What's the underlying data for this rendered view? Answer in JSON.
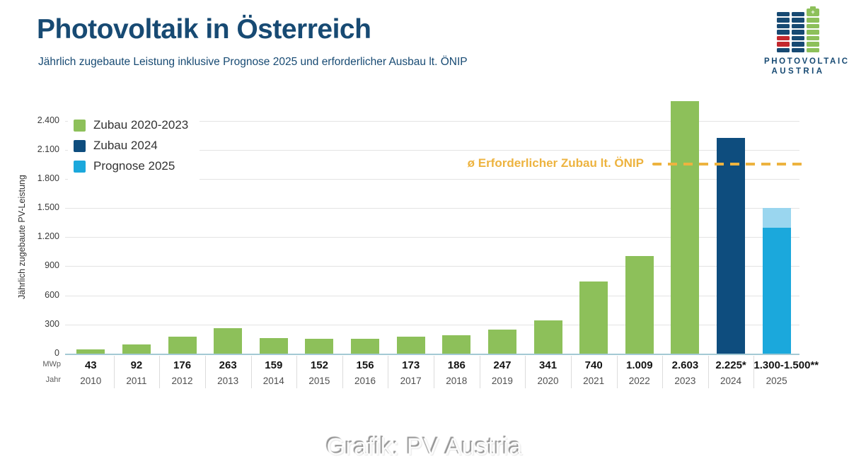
{
  "header": {
    "title": "Photovoltaik in Österreich",
    "subtitle": "Jährlich zugebaute Leistung inklusive Prognose 2025 und erforderlicher Ausbau lt. ÖNIP"
  },
  "logo": {
    "line1": "PHOTOVOLTAIC",
    "line2": "AUSTRIA",
    "columns": [
      [
        "navy",
        "navy",
        "navy",
        "navy",
        "red",
        "red",
        "navy"
      ],
      [
        "navy",
        "navy",
        "navy",
        "navy",
        "navy",
        "navy",
        "navy"
      ],
      [
        "cap",
        "green",
        "green",
        "green",
        "green",
        "green",
        "green"
      ]
    ],
    "cap_icon": "+"
  },
  "colors": {
    "navy_text": "#174a73",
    "green": "#8dc05a",
    "darkblue": "#0e4d7e",
    "lightblue": "#1ba8dc",
    "lightblue_cap": "#9ad6ef",
    "orange": "#edb33f",
    "red": "#c3282e",
    "grid": "#e3e3e3",
    "baseline": "#a3c9d4"
  },
  "chart_data": {
    "type": "bar",
    "title": "Photovoltaik in Österreich",
    "subtitle": "Jährlich zugebaute Leistung inklusive Prognose 2025 und erforderlicher Ausbau lt. ÖNIP",
    "ylabel": "Jährlich zugebaute PV-Leistung",
    "unit": "MWp",
    "grid": true,
    "ylim": [
      0,
      2700
    ],
    "yticks": [
      0,
      300,
      600,
      900,
      1200,
      1500,
      1800,
      2100,
      2400
    ],
    "ytick_labels": [
      "0",
      "300",
      "600",
      "900",
      "1.200",
      "1.500",
      "1.800",
      "2.100",
      "2.400"
    ],
    "categories": [
      "2010",
      "2011",
      "2012",
      "2013",
      "2014",
      "2015",
      "2016",
      "2017",
      "2018",
      "2019",
      "2020",
      "2021",
      "2022",
      "2023",
      "2024",
      "2025"
    ],
    "values": [
      43,
      92,
      176,
      263,
      159,
      152,
      156,
      173,
      186,
      247,
      341,
      740,
      1009,
      2603,
      2225,
      1300
    ],
    "value_labels": [
      "43",
      "92",
      "176",
      "263",
      "159",
      "152",
      "156",
      "173",
      "186",
      "247",
      "341",
      "740",
      "1.009",
      "2.603",
      "2.225*",
      "1.300-1.500**"
    ],
    "groups": [
      "zubau",
      "zubau",
      "zubau",
      "zubau",
      "zubau",
      "zubau",
      "zubau",
      "zubau",
      "zubau",
      "zubau",
      "zubau",
      "zubau",
      "zubau",
      "zubau",
      "zubau2024",
      "prognose2025"
    ],
    "prognose_2025_range": [
      1300,
      1500
    ],
    "legend": {
      "position": "top-left",
      "entries": [
        {
          "label": "Zubau 2020-2023",
          "color": "#8dc05a"
        },
        {
          "label": "Zubau 2024",
          "color": "#0e4d7e"
        },
        {
          "label": "Prognose 2025",
          "color": "#1ba8dc"
        }
      ]
    },
    "reference_line": {
      "label": "ø Erforderlicher Zubau lt. ÖNIP",
      "value": 1950,
      "color": "#edb33f",
      "style": "dashed"
    },
    "row_labels": {
      "value_row": "MWp",
      "year_row": "Jahr"
    }
  },
  "footer": {
    "credit": "Grafik: PV Austria"
  }
}
